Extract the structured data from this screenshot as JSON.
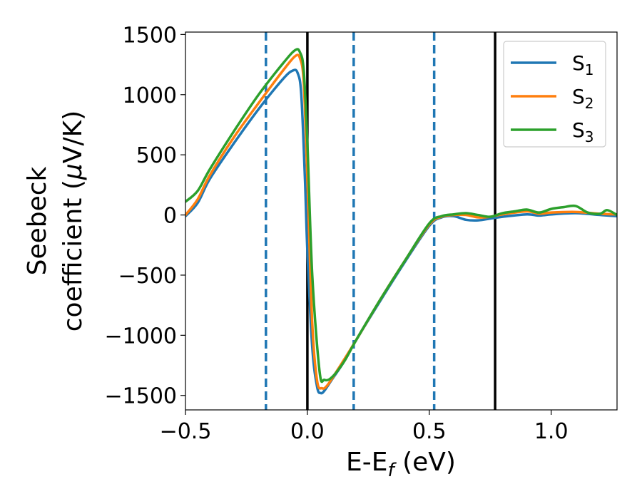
{
  "chart_data": {
    "type": "line",
    "xlabel": {
      "main": "E-E",
      "sub": "f",
      "unit": " (eV)"
    },
    "ylabel": {
      "line1": "Seebeck",
      "line2_text": "coefficient  (",
      "line2_mu": "μ",
      "line2_unit": "V/K)"
    },
    "xlim": [
      -0.5,
      1.27
    ],
    "ylim": [
      -1620,
      1520
    ],
    "xticks": [
      -0.5,
      0.0,
      0.5,
      1.0
    ],
    "xtick_labels": [
      "−0.5",
      "0.0",
      "0.5",
      "1.0"
    ],
    "yticks": [
      -1500,
      -1000,
      -500,
      0,
      500,
      1000,
      1500
    ],
    "ytick_labels": [
      "−1500",
      "−1000",
      "−500",
      "0",
      "500",
      "1000",
      "1500"
    ],
    "grid": false,
    "legend_position": "top-right",
    "vlines": [
      {
        "x": 0.0,
        "style": "solid",
        "color": "#000000"
      },
      {
        "x": 0.77,
        "style": "solid",
        "color": "#000000"
      },
      {
        "x": -0.17,
        "style": "dashed",
        "color": "#1f77b4"
      },
      {
        "x": 0.19,
        "style": "dashed",
        "color": "#1f77b4"
      },
      {
        "x": 0.52,
        "style": "dashed",
        "color": "#1f77b4"
      }
    ],
    "series": [
      {
        "name": "S",
        "sub": "1",
        "color": "#1f77b4",
        "points": [
          [
            -0.5,
            -10
          ],
          [
            -0.45,
            100
          ],
          [
            -0.4,
            300
          ],
          [
            -0.3,
            600
          ],
          [
            -0.2,
            880
          ],
          [
            -0.1,
            1130
          ],
          [
            -0.06,
            1200
          ],
          [
            -0.04,
            1180
          ],
          [
            -0.025,
            1000
          ],
          [
            -0.01,
            300
          ],
          [
            0.0,
            -300
          ],
          [
            0.02,
            -1100
          ],
          [
            0.04,
            -1430
          ],
          [
            0.055,
            -1480
          ],
          [
            0.07,
            -1460
          ],
          [
            0.1,
            -1370
          ],
          [
            0.15,
            -1220
          ],
          [
            0.2,
            -1040
          ],
          [
            0.3,
            -710
          ],
          [
            0.4,
            -390
          ],
          [
            0.5,
            -90
          ],
          [
            0.55,
            -20
          ],
          [
            0.6,
            -10
          ],
          [
            0.65,
            -40
          ],
          [
            0.7,
            -45
          ],
          [
            0.75,
            -30
          ],
          [
            0.8,
            -15
          ],
          [
            0.9,
            5
          ],
          [
            0.95,
            -5
          ],
          [
            1.0,
            5
          ],
          [
            1.1,
            15
          ],
          [
            1.2,
            0
          ],
          [
            1.27,
            -10
          ]
        ]
      },
      {
        "name": "S",
        "sub": "2",
        "color": "#ff7f0e",
        "points": [
          [
            -0.5,
            0
          ],
          [
            -0.45,
            130
          ],
          [
            -0.4,
            330
          ],
          [
            -0.3,
            650
          ],
          [
            -0.2,
            930
          ],
          [
            -0.1,
            1200
          ],
          [
            -0.05,
            1320
          ],
          [
            -0.03,
            1300
          ],
          [
            -0.015,
            1100
          ],
          [
            0.0,
            300
          ],
          [
            0.02,
            -900
          ],
          [
            0.04,
            -1380
          ],
          [
            0.06,
            -1440
          ],
          [
            0.08,
            -1420
          ],
          [
            0.12,
            -1300
          ],
          [
            0.2,
            -1040
          ],
          [
            0.3,
            -700
          ],
          [
            0.4,
            -380
          ],
          [
            0.5,
            -80
          ],
          [
            0.55,
            -15
          ],
          [
            0.6,
            0
          ],
          [
            0.65,
            0
          ],
          [
            0.7,
            -20
          ],
          [
            0.75,
            -15
          ],
          [
            0.8,
            5
          ],
          [
            0.9,
            30
          ],
          [
            0.95,
            10
          ],
          [
            1.0,
            20
          ],
          [
            1.1,
            25
          ],
          [
            1.2,
            10
          ],
          [
            1.27,
            5
          ]
        ]
      },
      {
        "name": "S",
        "sub": "3",
        "color": "#2ca02c",
        "points": [
          [
            -0.5,
            110
          ],
          [
            -0.45,
            200
          ],
          [
            -0.4,
            380
          ],
          [
            -0.3,
            700
          ],
          [
            -0.2,
            1000
          ],
          [
            -0.1,
            1260
          ],
          [
            -0.05,
            1370
          ],
          [
            -0.03,
            1350
          ],
          [
            -0.015,
            1200
          ],
          [
            0.0,
            600
          ],
          [
            0.02,
            -500
          ],
          [
            0.05,
            -1300
          ],
          [
            0.07,
            -1370
          ],
          [
            0.1,
            -1350
          ],
          [
            0.15,
            -1220
          ],
          [
            0.2,
            -1040
          ],
          [
            0.3,
            -700
          ],
          [
            0.4,
            -380
          ],
          [
            0.5,
            -70
          ],
          [
            0.55,
            -10
          ],
          [
            0.6,
            5
          ],
          [
            0.65,
            15
          ],
          [
            0.7,
            0
          ],
          [
            0.75,
            -15
          ],
          [
            0.8,
            15
          ],
          [
            0.85,
            30
          ],
          [
            0.9,
            45
          ],
          [
            0.95,
            20
          ],
          [
            1.0,
            50
          ],
          [
            1.05,
            65
          ],
          [
            1.1,
            75
          ],
          [
            1.15,
            20
          ],
          [
            1.2,
            10
          ],
          [
            1.23,
            40
          ],
          [
            1.27,
            0
          ]
        ]
      }
    ]
  }
}
